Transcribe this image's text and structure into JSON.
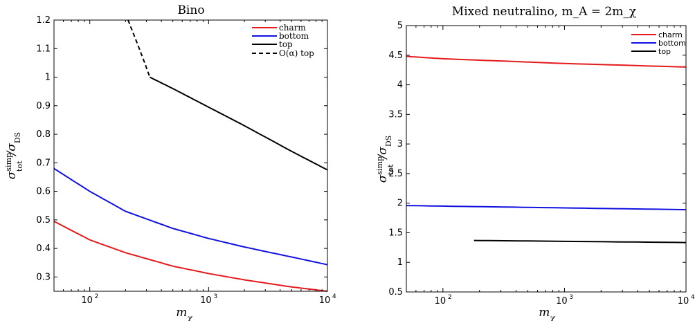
{
  "chart_data": [
    {
      "type": "line",
      "title": "Bino",
      "xlabel": "m_χ",
      "ylabel": "σ_tot^simp / σ_DS",
      "xscale": "log",
      "xlim": [
        50,
        10000
      ],
      "ylim": [
        0.25,
        1.2
      ],
      "xticks": [
        {
          "base": "10",
          "exp": "2",
          "value": 100
        },
        {
          "base": "10",
          "exp": "3",
          "value": 1000
        },
        {
          "base": "10",
          "exp": "4",
          "value": 10000
        }
      ],
      "yticks": [
        "0.3",
        "0.4",
        "0.5",
        "0.6",
        "0.7",
        "0.8",
        "0.9",
        "1",
        "1.1",
        "1.2"
      ],
      "legend_position": "top-right",
      "series": [
        {
          "name": "charm",
          "color": "#e41a1c",
          "style": "solid",
          "x": [
            50,
            100,
            200,
            500,
            1000,
            2000,
            5000,
            10000
          ],
          "y": [
            0.495,
            0.43,
            0.385,
            0.338,
            0.312,
            0.29,
            0.265,
            0.25
          ]
        },
        {
          "name": "bottom",
          "color": "#1010e0",
          "style": "solid",
          "x": [
            50,
            100,
            200,
            500,
            1000,
            2000,
            5000,
            10000
          ],
          "y": [
            0.68,
            0.6,
            0.53,
            0.47,
            0.435,
            0.405,
            0.37,
            0.343
          ]
        },
        {
          "name": "top",
          "color": "#000000",
          "style": "solid",
          "x": [
            320,
            500,
            1000,
            2000,
            5000,
            10000
          ],
          "y": [
            1.0,
            0.96,
            0.895,
            0.83,
            0.74,
            0.675
          ]
        },
        {
          "name": "O(α) top",
          "color": "#000000",
          "style": "dashed",
          "x": [
            210,
            250,
            290,
            320
          ],
          "y": [
            1.2,
            1.12,
            1.05,
            1.0
          ]
        }
      ]
    },
    {
      "type": "line",
      "title": "Mixed neutralino, m_A = 2m_χ",
      "xlabel": "m_χ",
      "ylabel": "σ_tot^simp / σ_DS",
      "xscale": "log",
      "xlim": [
        50,
        10000
      ],
      "ylim": [
        0.5,
        5
      ],
      "xticks": [
        {
          "base": "10",
          "exp": "2",
          "value": 100
        },
        {
          "base": "10",
          "exp": "3",
          "value": 1000
        },
        {
          "base": "10",
          "exp": "4",
          "value": 10000
        }
      ],
      "yticks": [
        "0.5",
        "1",
        "1.5",
        "2",
        "2.5",
        "3",
        "3.5",
        "4",
        "4.5",
        "5"
      ],
      "legend_position": "top-right",
      "series": [
        {
          "name": "charm",
          "color": "#e41a1c",
          "style": "solid",
          "x": [
            50,
            100,
            1000,
            10000
          ],
          "y": [
            4.48,
            4.44,
            4.36,
            4.3
          ]
        },
        {
          "name": "bottom",
          "color": "#1010e0",
          "style": "solid",
          "x": [
            50,
            100,
            1000,
            10000
          ],
          "y": [
            1.96,
            1.95,
            1.92,
            1.89
          ]
        },
        {
          "name": "top",
          "color": "#000000",
          "style": "solid",
          "x": [
            180,
            1000,
            10000
          ],
          "y": [
            1.37,
            1.355,
            1.335
          ]
        }
      ]
    }
  ]
}
